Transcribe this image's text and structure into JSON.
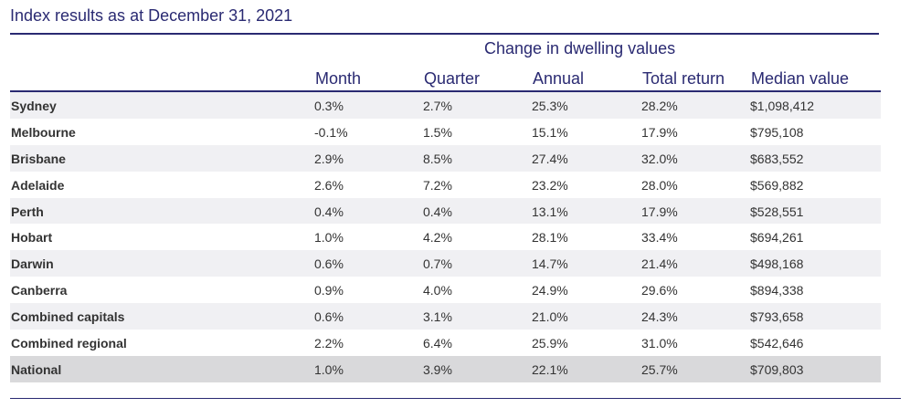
{
  "title": "Index results as at December 31, 2021",
  "group_header": "Change in dwelling values",
  "columns": {
    "month": "Month",
    "quarter": "Quarter",
    "annual": "Annual",
    "total_return": "Total return",
    "median_value": "Median value"
  },
  "rows": [
    {
      "city": "Sydney",
      "month": "0.3%",
      "quarter": "2.7%",
      "annual": "25.3%",
      "total_return": "28.2%",
      "median_value": "$1,098,412"
    },
    {
      "city": "Melbourne",
      "month": "-0.1%",
      "quarter": "1.5%",
      "annual": "15.1%",
      "total_return": "17.9%",
      "median_value": "$795,108"
    },
    {
      "city": "Brisbane",
      "month": "2.9%",
      "quarter": "8.5%",
      "annual": "27.4%",
      "total_return": "32.0%",
      "median_value": "$683,552"
    },
    {
      "city": "Adelaide",
      "month": "2.6%",
      "quarter": "7.2%",
      "annual": "23.2%",
      "total_return": "28.0%",
      "median_value": "$569,882"
    },
    {
      "city": "Perth",
      "month": "0.4%",
      "quarter": "0.4%",
      "annual": "13.1%",
      "total_return": "17.9%",
      "median_value": "$528,551"
    },
    {
      "city": "Hobart",
      "month": "1.0%",
      "quarter": "4.2%",
      "annual": "28.1%",
      "total_return": "33.4%",
      "median_value": "$694,261"
    },
    {
      "city": "Darwin",
      "month": "0.6%",
      "quarter": "0.7%",
      "annual": "14.7%",
      "total_return": "21.4%",
      "median_value": "$498,168"
    },
    {
      "city": "Canberra",
      "month": "0.9%",
      "quarter": "4.0%",
      "annual": "24.9%",
      "total_return": "29.6%",
      "median_value": "$894,338"
    },
    {
      "city": "Combined capitals",
      "month": "0.6%",
      "quarter": "3.1%",
      "annual": "21.0%",
      "total_return": "24.3%",
      "median_value": "$793,658"
    },
    {
      "city": "Combined regional",
      "month": "2.2%",
      "quarter": "6.4%",
      "annual": "25.9%",
      "total_return": "31.0%",
      "median_value": "$542,646"
    },
    {
      "city": "National",
      "month": "1.0%",
      "quarter": "3.9%",
      "annual": "22.1%",
      "total_return": "25.7%",
      "median_value": "$709,803"
    }
  ],
  "colors": {
    "header_text": "#2a2a72",
    "body_text": "#333333",
    "row_shade": "#f0f0f3",
    "national_shade": "#d9d9db"
  }
}
